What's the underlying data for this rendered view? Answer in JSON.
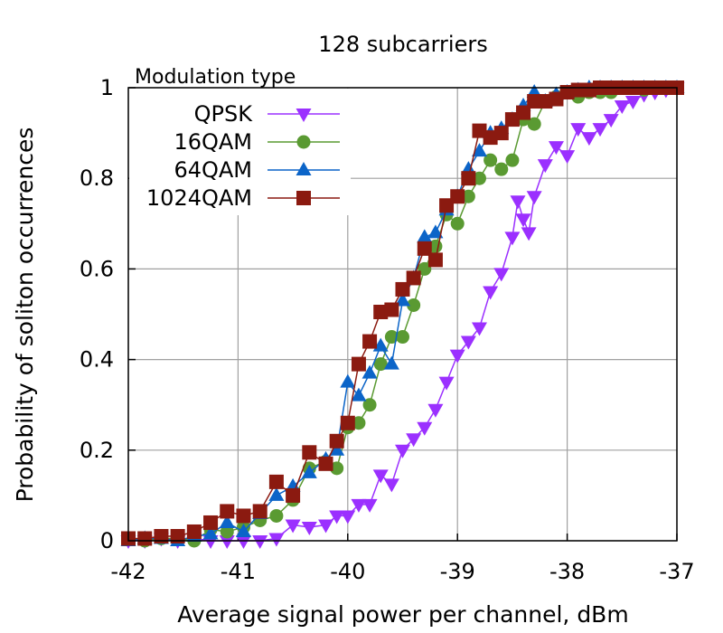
{
  "chart_data": {
    "type": "line",
    "title": "128 subcarriers",
    "xlabel": "Average signal power per channel, dBm",
    "ylabel": "Probability of soliton occurrences",
    "xlim": [
      -42,
      -37
    ],
    "ylim": [
      0,
      1
    ],
    "x_ticks": [
      "-42",
      "-41",
      "-40",
      "-39",
      "-38",
      "-37"
    ],
    "y_ticks": [
      "0",
      "0.2",
      "0.4",
      "0.6",
      "0.8",
      "1"
    ],
    "grid": true,
    "legend_title": "Modulation type",
    "legend_position": "top-left",
    "series": [
      {
        "name": "QPSK",
        "color": "#9b30ff",
        "marker": "triangle-down",
        "x": [
          -42.0,
          -41.85,
          -41.7,
          -41.55,
          -41.4,
          -41.25,
          -41.1,
          -40.95,
          -40.8,
          -40.65,
          -40.5,
          -40.35,
          -40.2,
          -40.1,
          -40.0,
          -39.9,
          -39.8,
          -39.7,
          -39.6,
          -39.5,
          -39.4,
          -39.3,
          -39.2,
          -39.1,
          -39.0,
          -38.9,
          -38.8,
          -38.7,
          -38.6,
          -38.5,
          -38.45,
          -38.4,
          -38.35,
          -38.3,
          -38.2,
          -38.1,
          -38.0,
          -37.9,
          -37.8,
          -37.7,
          -37.6,
          -37.5,
          -37.4,
          -37.3,
          -37.2,
          -37.1,
          -37.0
        ],
        "y": [
          0.0,
          0.0,
          0.005,
          0.0,
          0.005,
          0.0,
          0.0,
          0.0,
          0.0,
          0.005,
          0.035,
          0.03,
          0.035,
          0.055,
          0.055,
          0.08,
          0.08,
          0.145,
          0.125,
          0.2,
          0.225,
          0.25,
          0.29,
          0.35,
          0.41,
          0.44,
          0.47,
          0.55,
          0.59,
          0.67,
          0.75,
          0.71,
          0.68,
          0.76,
          0.83,
          0.87,
          0.85,
          0.91,
          0.89,
          0.91,
          0.93,
          0.96,
          0.97,
          0.985,
          0.99,
          0.995,
          1.0
        ]
      },
      {
        "name": "16QAM",
        "color": "#5a9a32",
        "marker": "circle",
        "x": [
          -42.0,
          -41.85,
          -41.7,
          -41.55,
          -41.4,
          -41.25,
          -41.1,
          -40.95,
          -40.8,
          -40.65,
          -40.5,
          -40.35,
          -40.2,
          -40.1,
          -40.0,
          -39.9,
          -39.8,
          -39.7,
          -39.6,
          -39.5,
          -39.4,
          -39.3,
          -39.2,
          -39.1,
          -39.0,
          -38.9,
          -38.8,
          -38.7,
          -38.6,
          -38.5,
          -38.4,
          -38.3,
          -38.2,
          -38.1,
          -38.0,
          -37.9,
          -37.8,
          -37.7,
          -37.6,
          -37.5,
          -37.4,
          -37.3,
          -37.2,
          -37.1,
          -37.0
        ],
        "y": [
          0.005,
          0.0,
          0.005,
          0.005,
          0.0,
          0.025,
          0.02,
          0.03,
          0.045,
          0.055,
          0.09,
          0.16,
          0.175,
          0.16,
          0.25,
          0.26,
          0.3,
          0.39,
          0.45,
          0.45,
          0.52,
          0.6,
          0.65,
          0.72,
          0.7,
          0.76,
          0.8,
          0.84,
          0.82,
          0.84,
          0.93,
          0.92,
          0.97,
          0.98,
          0.99,
          0.98,
          0.99,
          0.99,
          0.99,
          1.0,
          1.0,
          0.995,
          1.0,
          1.0,
          1.0
        ]
      },
      {
        "name": "64QAM",
        "color": "#0b64c8",
        "marker": "triangle-up",
        "x": [
          -42.0,
          -41.85,
          -41.7,
          -41.55,
          -41.4,
          -41.25,
          -41.1,
          -40.95,
          -40.8,
          -40.65,
          -40.5,
          -40.35,
          -40.2,
          -40.1,
          -40.0,
          -39.9,
          -39.8,
          -39.7,
          -39.6,
          -39.5,
          -39.4,
          -39.3,
          -39.2,
          -39.1,
          -39.0,
          -38.9,
          -38.8,
          -38.7,
          -38.6,
          -38.5,
          -38.4,
          -38.3,
          -38.2,
          -38.1,
          -38.0,
          -37.9,
          -37.8,
          -37.7,
          -37.6,
          -37.5,
          -37.4,
          -37.3,
          -37.2,
          -37.1,
          -37.0
        ],
        "y": [
          0.0,
          0.005,
          0.005,
          0.0,
          0.01,
          0.015,
          0.04,
          0.02,
          0.06,
          0.1,
          0.12,
          0.15,
          0.18,
          0.2,
          0.35,
          0.32,
          0.37,
          0.43,
          0.39,
          0.53,
          0.58,
          0.67,
          0.68,
          0.73,
          0.76,
          0.82,
          0.86,
          0.9,
          0.91,
          0.93,
          0.96,
          0.99,
          0.97,
          0.985,
          0.99,
          0.995,
          1.0,
          1.0,
          1.0,
          1.0,
          1.0,
          1.0,
          1.0,
          1.0,
          1.0
        ]
      },
      {
        "name": "1024QAM",
        "color": "#8b1a10",
        "marker": "square",
        "x": [
          -42.0,
          -41.85,
          -41.7,
          -41.55,
          -41.4,
          -41.25,
          -41.1,
          -40.95,
          -40.8,
          -40.65,
          -40.5,
          -40.35,
          -40.2,
          -40.1,
          -40.0,
          -39.9,
          -39.8,
          -39.7,
          -39.6,
          -39.5,
          -39.4,
          -39.3,
          -39.2,
          -39.1,
          -39.0,
          -38.9,
          -38.8,
          -38.7,
          -38.6,
          -38.5,
          -38.4,
          -38.3,
          -38.2,
          -38.1,
          -38.0,
          -37.9,
          -37.8,
          -37.7,
          -37.6,
          -37.5,
          -37.4,
          -37.3,
          -37.2,
          -37.1,
          -37.0
        ],
        "y": [
          0.005,
          0.005,
          0.01,
          0.01,
          0.02,
          0.04,
          0.065,
          0.055,
          0.065,
          0.13,
          0.1,
          0.195,
          0.17,
          0.22,
          0.26,
          0.39,
          0.44,
          0.505,
          0.51,
          0.555,
          0.58,
          0.645,
          0.62,
          0.74,
          0.76,
          0.8,
          0.905,
          0.89,
          0.9,
          0.93,
          0.945,
          0.97,
          0.97,
          0.975,
          0.99,
          0.995,
          0.995,
          1.0,
          1.0,
          1.0,
          1.0,
          1.0,
          1.0,
          1.0,
          1.0
        ]
      }
    ]
  }
}
